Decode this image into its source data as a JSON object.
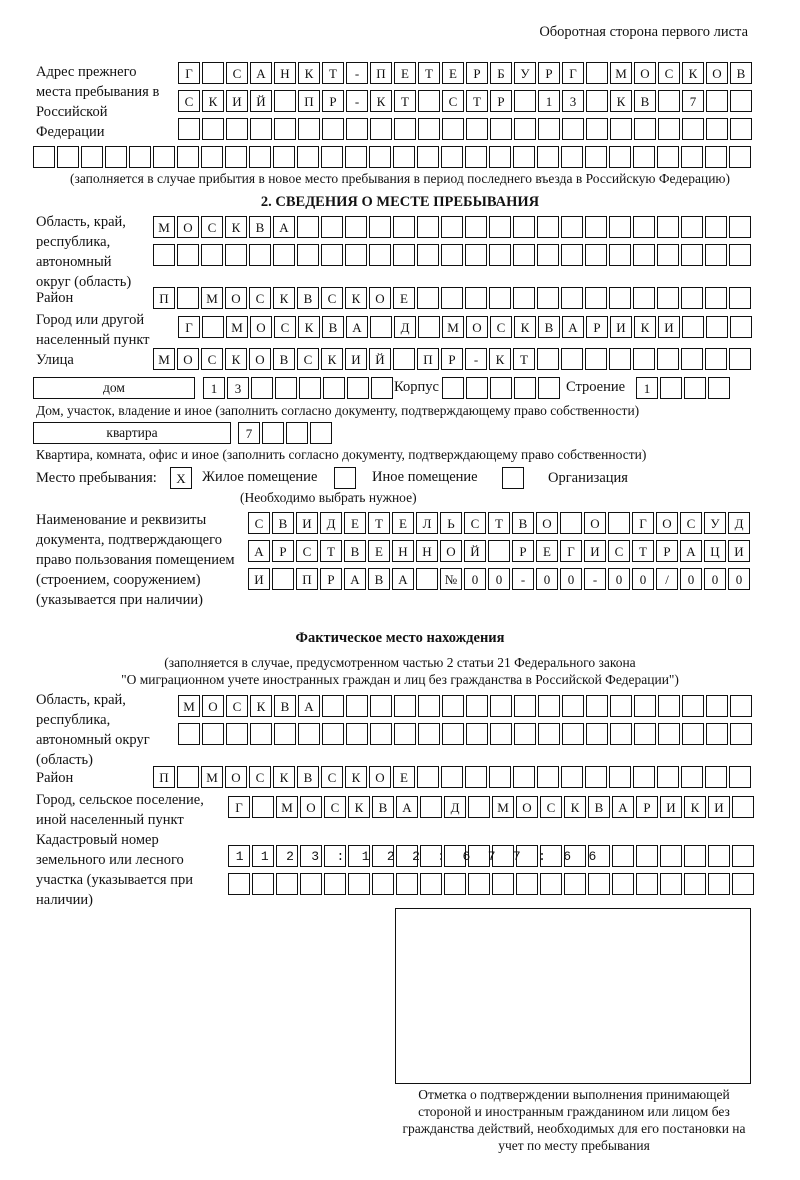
{
  "header": {
    "page_side": "Оборотная сторона первого листа"
  },
  "previous_address": {
    "label": "Адрес прежнего места пребывания в Российской Федерации",
    "rows": [
      "Г САНКТ-ПЕТЕРБУРГ МОСКОВ",
      "СКИЙ ПР-КТ СТР 13 КВ 7  ",
      "",
      ""
    ],
    "note": "(заполняется в случае прибытия в новое место пребывания в период последнего въезда в Российскую Федерацию)"
  },
  "section2": {
    "title": "2. СВЕДЕНИЯ О МЕСТЕ ПРЕБЫВАНИЯ",
    "region_label": "Область, край, республика, автономный округ (область)",
    "region_rows": [
      "МОСКВА",
      ""
    ],
    "district_label": "Район",
    "district": "П МОСКВСКОЕ",
    "city_label": "Город или другой населенный пункт",
    "city": "Г МОСКВА Д МОСКВАРИКИ",
    "street_label": "Улица",
    "street": "МОСКОВСКИЙ ПР-КТ",
    "house_type": "дом",
    "house_number": "13",
    "corpus_label": "Корпус",
    "corpus": "",
    "building_label": "Строение",
    "building": "1",
    "house_note": "Дом, участок, владение и иное (заполнить согласно документу, подтверждающему право собственности)",
    "apartment_type": "квартира",
    "apartment_number": "7",
    "apartment_note": "Квартира, комната, офис и иное (заполнить согласно документу, подтверждающему право собственности)",
    "stay_place_label": "Место пребывания:",
    "options": [
      {
        "label": "Жилое помещение",
        "checked": true,
        "mark": "X"
      },
      {
        "label": "Иное помещение",
        "checked": false,
        "mark": ""
      },
      {
        "label": "Организация",
        "checked": false,
        "mark": ""
      }
    ],
    "choose_note": "(Необходимо выбрать нужное)",
    "document_label": "Наименование и реквизиты документа, подтверждающего право пользования помещением (строением, сооружением) (указывается при наличии)",
    "document_rows": [
      "СВИДЕТЕЛЬСТВО О ГОСУД",
      "АРСТВЕННОЙ РЕГИСТРАЦИ",
      "И ПРАВА №00-00-00/000"
    ]
  },
  "actual_location": {
    "title": "Фактическое место нахождения",
    "note1": "(заполняется в случае, предусмотренном частью 2 статьи 21 Федерального закона",
    "note2": "\"О миграционном учете иностранных граждан и лиц без гражданства в Российской Федерации\")",
    "region_label": "Область, край, республика, автономный округ (область)",
    "region_rows": [
      "МОСКВА",
      ""
    ],
    "district_label": "Район",
    "district": "П МОСКВСКОЕ",
    "city_label": "Город, сельское поселение, иной населенный пункт",
    "city": "Г МОСКВА Д МОСКВАРИКИ",
    "cadastral_label": "Кадастровый номер земельного или лесного участка (указывается при наличии)",
    "cadastral_rows": [
      "1123:122:677:66",
      ""
    ]
  },
  "confirmation": {
    "caption": "Отметка о подтверждении выполнения принимающей стороной и иностранным гражданином или лицом без гражданства действий, необходимых для его постановки на учет по месту пребывания"
  }
}
